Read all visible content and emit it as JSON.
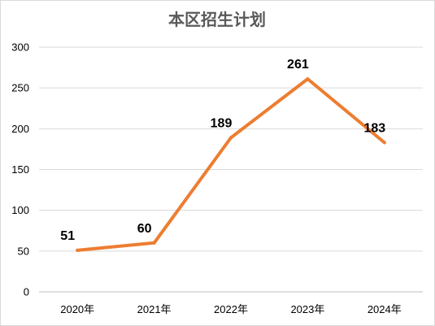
{
  "chart_data": {
    "type": "line",
    "title": "本区招生计划",
    "categories": [
      "2020年",
      "2021年",
      "2022年",
      "2023年",
      "2024年"
    ],
    "series": [
      {
        "values": [
          51,
          60,
          189,
          261,
          183
        ],
        "color": "#ED7D31"
      }
    ],
    "ylim": [
      0,
      300
    ],
    "yticks": [
      "0",
      "50",
      "100",
      "150",
      "200",
      "250",
      "300"
    ],
    "grid": true,
    "data_labels": true,
    "legend": "none"
  }
}
